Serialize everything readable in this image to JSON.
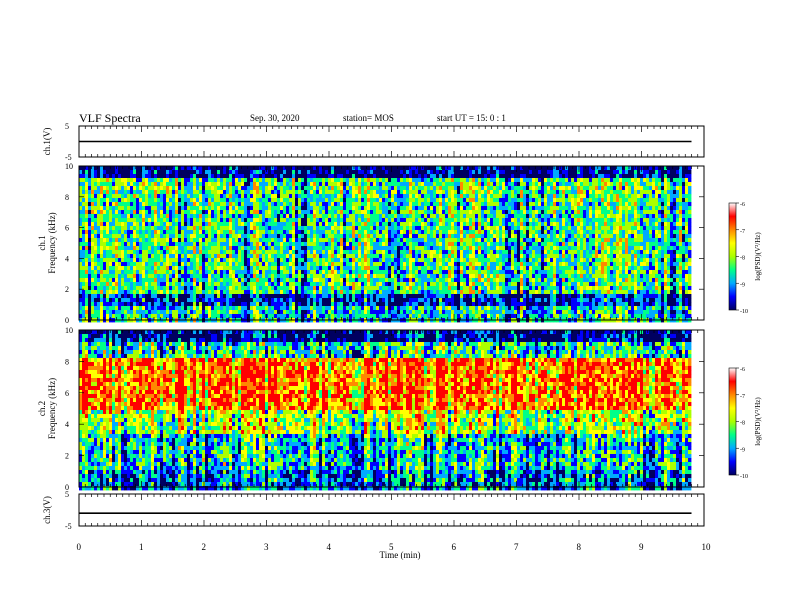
{
  "header": {
    "title": "VLF Spectra",
    "date": "Sep. 30, 2020",
    "station": "station= MOS",
    "start": "start UT = 15: 0 : 1"
  },
  "colors": {
    "colormap": [
      "#000060",
      "#0000ff",
      "#00aaff",
      "#00ff88",
      "#aaff00",
      "#ffff00",
      "#ff8800",
      "#ff0000",
      "#ffffff"
    ]
  },
  "chart_data": [
    {
      "type": "line",
      "ylabel": "ch.1(V)",
      "ylim": [
        -5,
        5
      ],
      "yticks": [
        "5",
        "-5"
      ],
      "xlim": [
        0,
        10
      ],
      "x": [
        0,
        9.8
      ],
      "y": [
        0,
        0
      ]
    },
    {
      "type": "heatmap",
      "ylabel": "ch.1\nFrequency (kHz)",
      "ylabel_lines": [
        "ch.1",
        "Frequency (kHz)"
      ],
      "ylim": [
        0,
        10
      ],
      "yticks": [
        "0",
        "2",
        "4",
        "6",
        "8",
        "10"
      ],
      "xlim": [
        0,
        10
      ],
      "colorbar": {
        "label": "log(PSD)(V²/Hz)",
        "range": [
          -10,
          -6
        ],
        "ticks": [
          "-6",
          "-7",
          "-8",
          "-9",
          "-10"
        ]
      }
    },
    {
      "type": "heatmap",
      "ylabel": "ch.2\nFrequency (kHz)",
      "ylabel_lines": [
        "ch.2",
        "Frequency (kHz)"
      ],
      "ylim": [
        0,
        10
      ],
      "yticks": [
        "0",
        "2",
        "4",
        "6",
        "8",
        "10"
      ],
      "xlim": [
        0,
        10
      ],
      "colorbar": {
        "label": "log(PSD)(V²/Hz)",
        "range": [
          -10,
          -6
        ],
        "ticks": [
          "-6",
          "-7",
          "-8",
          "-9",
          "-10"
        ]
      }
    },
    {
      "type": "line",
      "ylabel": "ch.3(V)",
      "ylim": [
        -5,
        5
      ],
      "yticks": [
        "5",
        "-5"
      ],
      "xlim": [
        0,
        10
      ],
      "x": [
        0,
        9.8
      ],
      "y": [
        -1,
        -1
      ],
      "xlabel": "Time (min)",
      "xticks": [
        "0",
        "1",
        "2",
        "3",
        "4",
        "5",
        "6",
        "7",
        "8",
        "9",
        "10"
      ]
    }
  ]
}
